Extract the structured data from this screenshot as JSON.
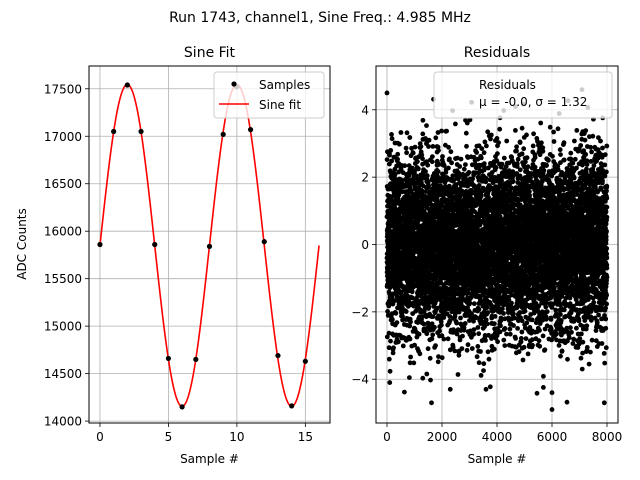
{
  "figure": {
    "suptitle": "Run 1743, channel1, Sine Freq.: 4.985 MHz"
  },
  "chart_data": [
    {
      "type": "scatter+line",
      "title": "Sine Fit",
      "xlabel": "Sample #",
      "ylabel": "ADC Counts",
      "xlim": [
        -0.8,
        16.8
      ],
      "ylim": [
        13980,
        17740
      ],
      "xticks": [
        0,
        5,
        10,
        15
      ],
      "yticks": [
        14000,
        14500,
        15000,
        15500,
        16000,
        16500,
        17000,
        17500
      ],
      "grid": true,
      "legend": {
        "location": "top-right",
        "entries": [
          "Samples",
          "Sine fit"
        ]
      },
      "fit": {
        "amplitude": 1695,
        "offset": 15850,
        "period": 8.0,
        "phase_sample": 0,
        "x_range": [
          0,
          16
        ]
      },
      "series": [
        {
          "name": "Samples",
          "color": "#000000",
          "x": [
            0,
            1,
            2,
            3,
            4,
            5,
            6,
            7,
            8,
            9,
            10,
            11,
            12,
            13,
            14,
            15
          ],
          "y": [
            15860,
            17050,
            17540,
            17050,
            15860,
            14660,
            14150,
            14650,
            15840,
            17020,
            17520,
            17070,
            15890,
            14690,
            14160,
            14630
          ]
        },
        {
          "name": "Sine fit",
          "color": "#ff0000"
        }
      ]
    },
    {
      "type": "scatter",
      "title": "Residuals",
      "xlabel": "Sample #",
      "ylabel": "",
      "xlim": [
        -400,
        8400
      ],
      "ylim": [
        -5.3,
        5.3
      ],
      "xticks": [
        0,
        2000,
        4000,
        6000,
        8000
      ],
      "yticks": [
        -4,
        -2,
        0,
        2,
        4
      ],
      "grid": true,
      "legend": {
        "location": "top-right",
        "entries": [
          "Residuals",
          "μ = -0.0, σ = 1.32"
        ]
      },
      "stats": {
        "mu": "-0.0",
        "sigma": "1.32"
      },
      "series": [
        {
          "name": "Residuals",
          "color": "#000000",
          "n_points": 8000,
          "mean": 0.0,
          "std": 1.32,
          "notable_points": [
            [
              0,
              4.5
            ],
            [
              6000,
              -4.9
            ],
            [
              2300,
              -4.3
            ],
            [
              3600,
              -4.3
            ],
            [
              100,
              -4.1
            ],
            [
              6000,
              -4.4
            ],
            [
              7100,
              -3.7
            ]
          ]
        }
      ]
    }
  ]
}
